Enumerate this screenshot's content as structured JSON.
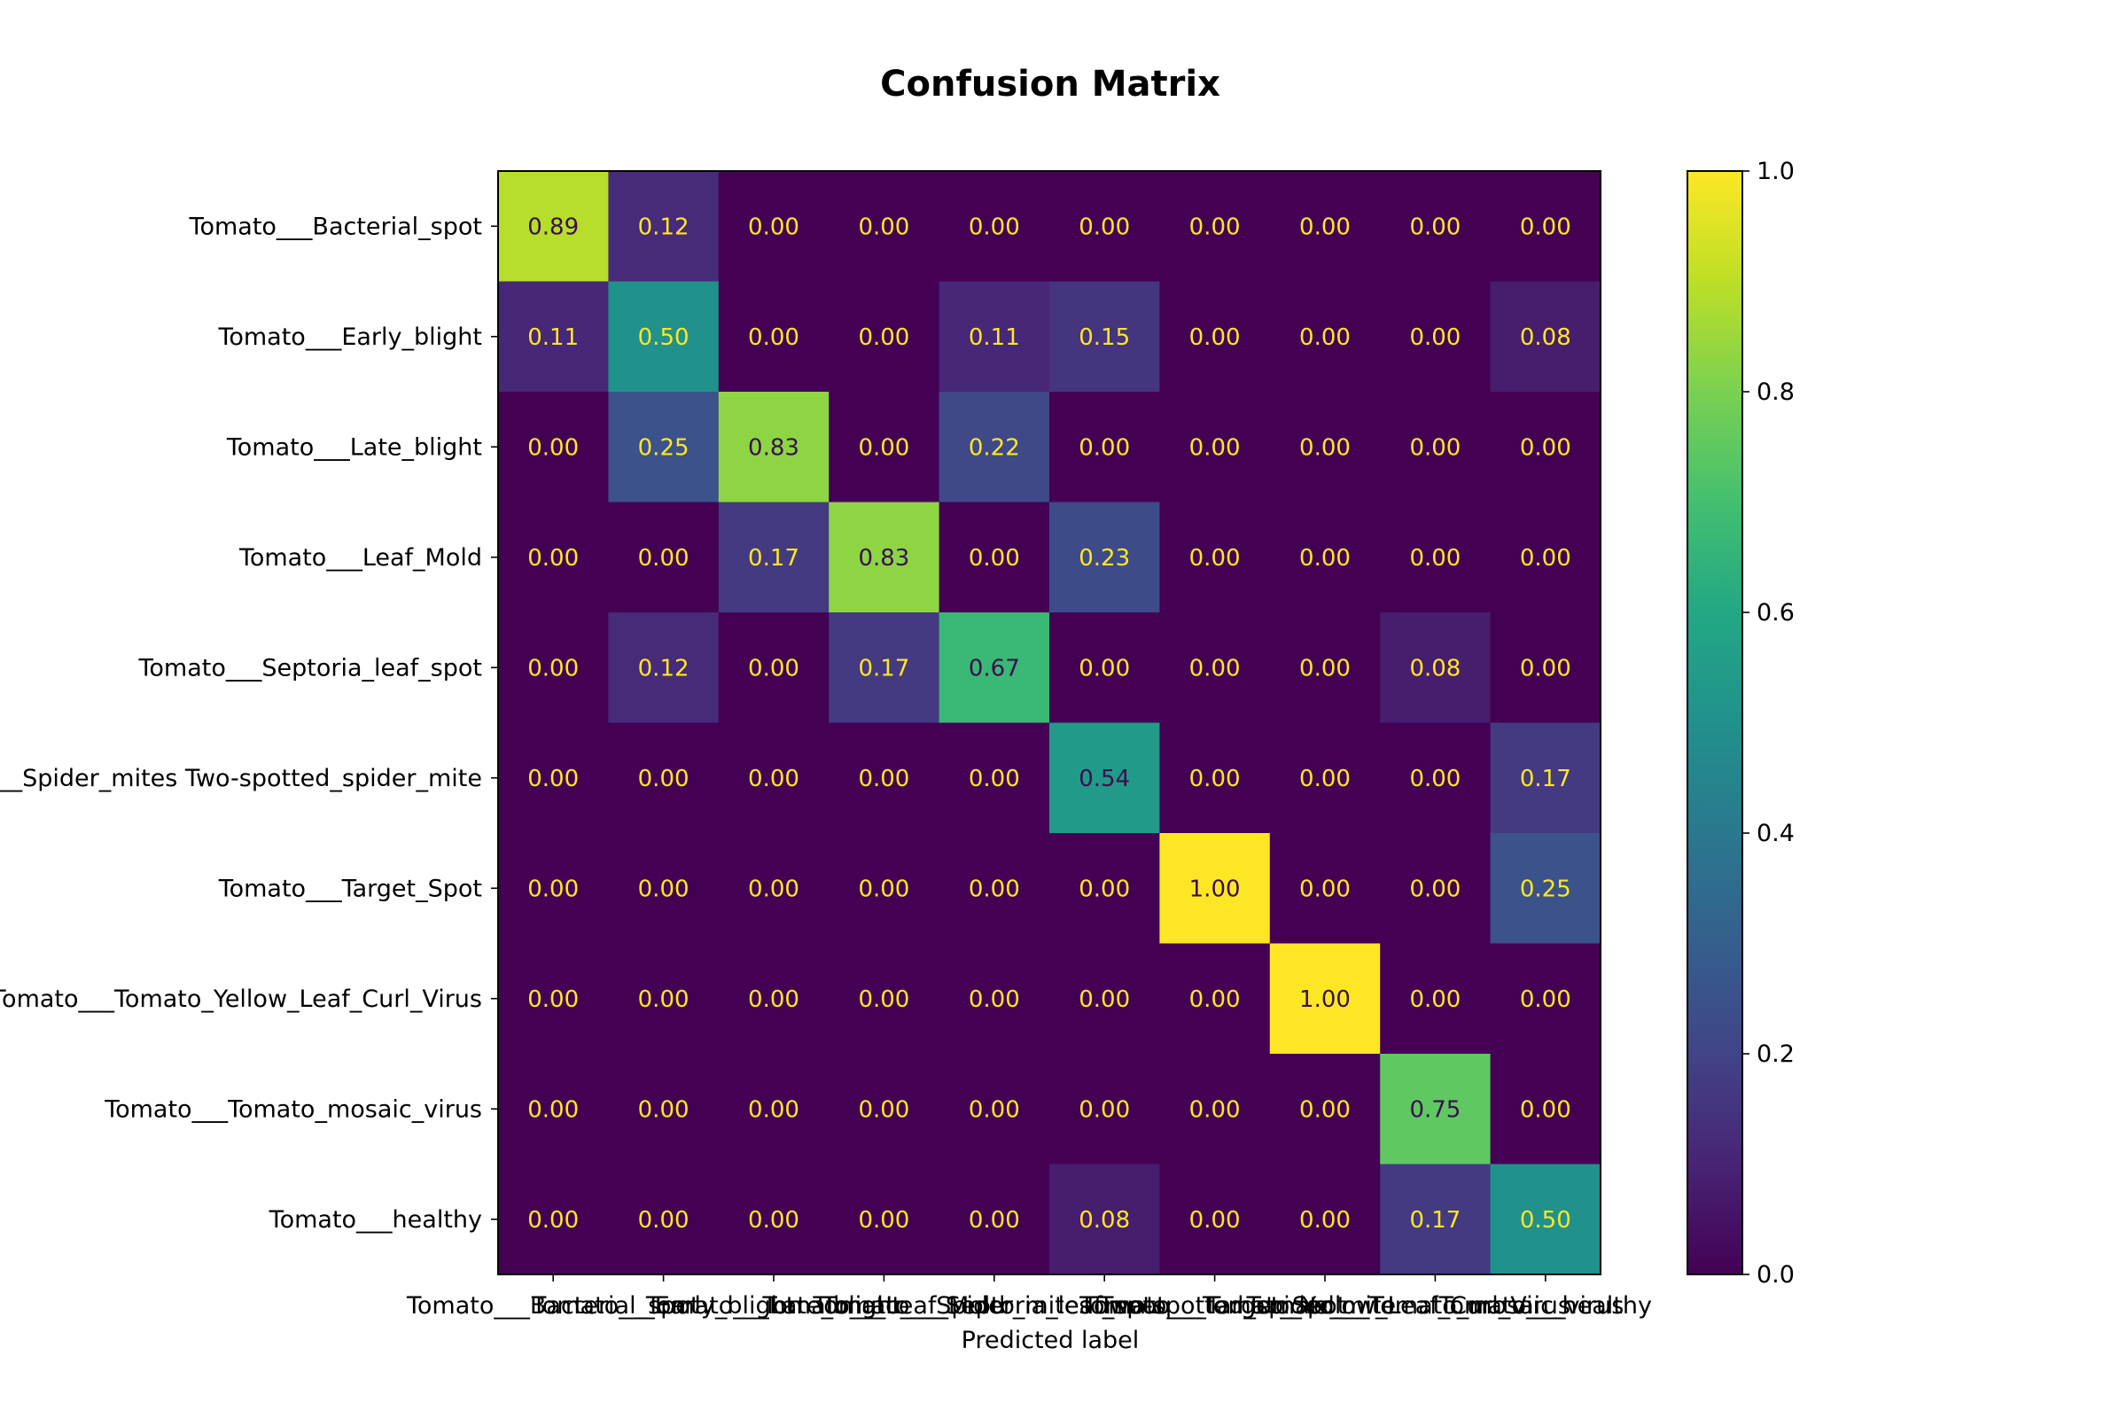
{
  "chart_data": {
    "type": "heatmap",
    "title": "Confusion Matrix",
    "xlabel": "Predicted label",
    "ylabel": "",
    "row_labels": [
      "Tomato___Bacterial_spot",
      "Tomato___Early_blight",
      "Tomato___Late_blight",
      "Tomato___Leaf_Mold",
      "Tomato___Septoria_leaf_spot",
      "Tomato___Spider_mites Two-spotted_spider_mite",
      "Tomato___Target_Spot",
      "Tomato___Tomato_Yellow_Leaf_Curl_Virus",
      "Tomato___Tomato_mosaic_virus",
      "Tomato___healthy"
    ],
    "col_labels": [
      "Tomato___Bacterial_spot",
      "Tomato___Early_blight",
      "Tomato___Late_blight",
      "Tomato___Leaf_Mold",
      "Tomato___Septoria_leaf_spot",
      "Tomato___Spider_mites Two-spotted_spider_mite",
      "Tomato___Target_Spot",
      "Tomato___Tomato_Yellow_Leaf_Curl_Virus",
      "Tomato___Tomato_mosaic_virus",
      "Tomato___healthy"
    ],
    "values": [
      [
        0.89,
        0.12,
        0.0,
        0.0,
        0.0,
        0.0,
        0.0,
        0.0,
        0.0,
        0.0
      ],
      [
        0.11,
        0.5,
        0.0,
        0.0,
        0.11,
        0.15,
        0.0,
        0.0,
        0.0,
        0.08
      ],
      [
        0.0,
        0.25,
        0.83,
        0.0,
        0.22,
        0.0,
        0.0,
        0.0,
        0.0,
        0.0
      ],
      [
        0.0,
        0.0,
        0.17,
        0.83,
        0.0,
        0.23,
        0.0,
        0.0,
        0.0,
        0.0
      ],
      [
        0.0,
        0.12,
        0.0,
        0.17,
        0.67,
        0.0,
        0.0,
        0.0,
        0.08,
        0.0
      ],
      [
        0.0,
        0.0,
        0.0,
        0.0,
        0.0,
        0.54,
        0.0,
        0.0,
        0.0,
        0.17
      ],
      [
        0.0,
        0.0,
        0.0,
        0.0,
        0.0,
        0.0,
        1.0,
        0.0,
        0.0,
        0.25
      ],
      [
        0.0,
        0.0,
        0.0,
        0.0,
        0.0,
        0.0,
        0.0,
        1.0,
        0.0,
        0.0
      ],
      [
        0.0,
        0.0,
        0.0,
        0.0,
        0.0,
        0.0,
        0.0,
        0.0,
        0.75,
        0.0
      ],
      [
        0.0,
        0.0,
        0.0,
        0.0,
        0.0,
        0.08,
        0.0,
        0.0,
        0.17,
        0.5
      ]
    ],
    "colormap": "viridis",
    "colorbar": {
      "range": [
        0.0,
        1.0
      ],
      "ticks": [
        0.0,
        0.2,
        0.4,
        0.6,
        0.8,
        1.0
      ],
      "tick_labels": [
        "0.0",
        "0.2",
        "0.4",
        "0.6",
        "0.8",
        "1.0"
      ]
    },
    "label_colors": {
      "dark_text": "#3b0f4f",
      "light_text": "#fde725"
    },
    "grid": false
  }
}
